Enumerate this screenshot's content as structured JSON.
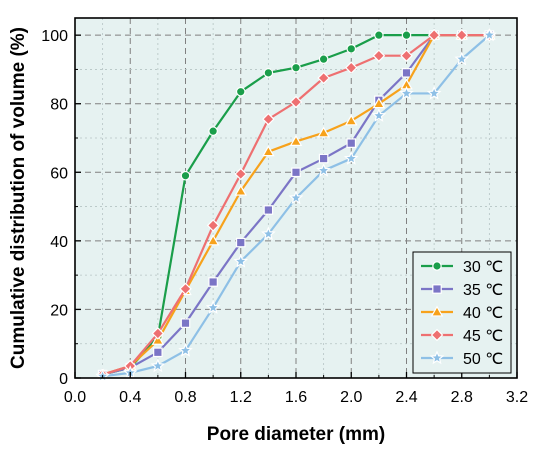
{
  "chart_data": {
    "type": "line",
    "title": "",
    "xlabel": "Pore diameter (mm)",
    "ylabel": "Cumulative distribution of volume (%)",
    "xlim": [
      0.0,
      3.2
    ],
    "ylim": [
      0,
      105
    ],
    "xticks": [
      0.0,
      0.4,
      0.8,
      1.2,
      1.6,
      2.0,
      2.4,
      2.8,
      3.2
    ],
    "xtick_labels": [
      "0.0",
      "0.4",
      "0.8",
      "1.2",
      "1.6",
      "2.0",
      "2.4",
      "2.8",
      "3.2"
    ],
    "yticks": [
      0,
      20,
      40,
      60,
      80,
      100
    ],
    "ytick_labels": [
      "0",
      "20",
      "40",
      "60",
      "80",
      "100"
    ],
    "grid": true,
    "background_color": "#e6f2f1",
    "legend_position": "bottom-right",
    "series": [
      {
        "name": "30 ℃",
        "color": "#1a9e4a",
        "marker": "circle",
        "x": [
          0.2,
          0.4,
          0.6,
          0.8,
          1.0,
          1.2,
          1.4,
          1.6,
          1.8,
          2.0,
          2.2,
          2.4,
          2.6,
          2.8,
          3.0
        ],
        "y": [
          1,
          3,
          12,
          59,
          72,
          83.5,
          89,
          90.5,
          93,
          96,
          100,
          100,
          100,
          100,
          100
        ]
      },
      {
        "name": "35 ℃",
        "color": "#7b75c6",
        "marker": "square",
        "x": [
          0.2,
          0.4,
          0.6,
          0.8,
          1.0,
          1.2,
          1.4,
          1.6,
          1.8,
          2.0,
          2.2,
          2.4,
          2.6,
          2.8,
          3.0
        ],
        "y": [
          1,
          3,
          7.5,
          16,
          28,
          39.5,
          49,
          60,
          64,
          68.5,
          81,
          89,
          100,
          100,
          100
        ]
      },
      {
        "name": "40 ℃",
        "color": "#f7a21b",
        "marker": "triangle",
        "x": [
          0.2,
          0.4,
          0.6,
          0.8,
          1.0,
          1.2,
          1.4,
          1.6,
          1.8,
          2.0,
          2.2,
          2.4,
          2.6,
          2.8,
          3.0
        ],
        "y": [
          1,
          3.5,
          11,
          25.5,
          40,
          54.5,
          66,
          69,
          71.5,
          75,
          80,
          85.5,
          100,
          100,
          100
        ]
      },
      {
        "name": "45 ℃",
        "color": "#ee7071",
        "marker": "diamond",
        "x": [
          0.2,
          0.4,
          0.6,
          0.8,
          1.0,
          1.2,
          1.4,
          1.6,
          1.8,
          2.0,
          2.2,
          2.4,
          2.6,
          2.8,
          3.0
        ],
        "y": [
          1,
          3.5,
          13,
          26,
          44.5,
          59.5,
          75.5,
          80.5,
          87.5,
          90.5,
          94,
          94,
          100,
          100,
          100
        ]
      },
      {
        "name": "50 ℃",
        "color": "#8ec0e6",
        "marker": "star",
        "x": [
          0.2,
          0.4,
          0.6,
          0.8,
          1.0,
          1.2,
          1.4,
          1.6,
          1.8,
          2.0,
          2.2,
          2.4,
          2.6,
          2.8,
          3.0
        ],
        "y": [
          0.5,
          1.5,
          3.5,
          8,
          20.5,
          34,
          42,
          52.5,
          60.5,
          64,
          76.5,
          83,
          83,
          93,
          100
        ]
      }
    ]
  }
}
